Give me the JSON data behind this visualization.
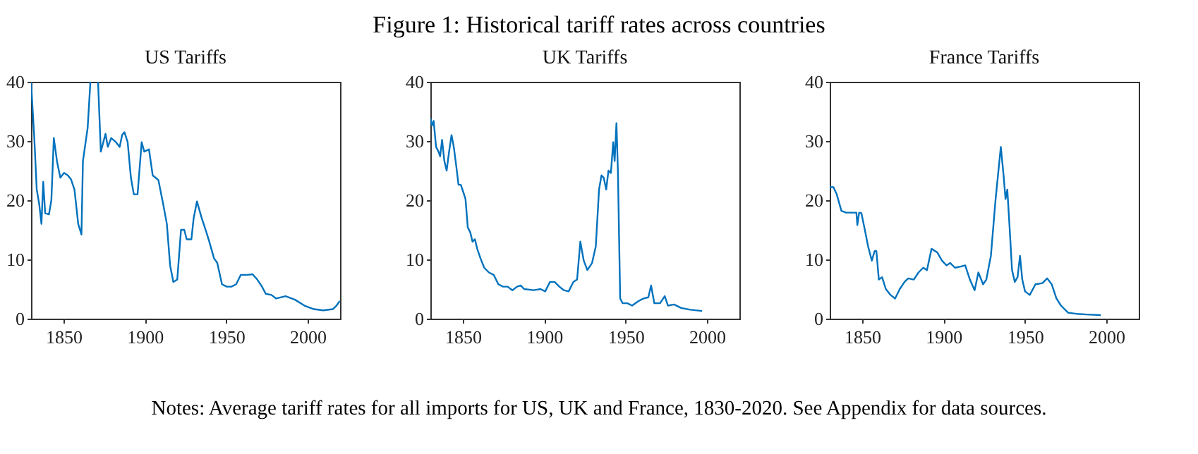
{
  "chart_data": [
    {
      "type": "line",
      "title": "US Tariffs",
      "color": "#0072bd",
      "xlim": [
        1830,
        2020
      ],
      "ylim": [
        0,
        40
      ],
      "xticks": [
        1850,
        1900,
        1950,
        2000
      ],
      "yticks": [
        0,
        10,
        20,
        30,
        40
      ],
      "grid": false,
      "x": [
        1830,
        1832,
        1833.5,
        1835,
        1836.4,
        1837.5,
        1838.7,
        1841,
        1842.5,
        1844,
        1846,
        1848,
        1850.3,
        1852.6,
        1854.6,
        1856.7,
        1859,
        1861,
        1861.9,
        1864.8,
        1866.5,
        1869,
        1871.2,
        1872.9,
        1875.8,
        1877.2,
        1879.3,
        1882.2,
        1884.5,
        1886,
        1887.4,
        1889.4,
        1891.4,
        1893.2,
        1895.5,
        1898,
        1899.6,
        1902.5,
        1904.8,
        1908.3,
        1911.2,
        1913.5,
        1915.5,
        1917.5,
        1919.9,
        1922.2,
        1924.2,
        1925.7,
        1928.6,
        1930,
        1932,
        1934.9,
        1937.8,
        1939.6,
        1942.5,
        1944.5,
        1947.4,
        1950.3,
        1953.2,
        1956.1,
        1959,
        1963.3,
        1966.2,
        1969.1,
        1972,
        1974.3,
        1977.8,
        1980.7,
        1986.5,
        1992.3,
        1998.1,
        2003.9,
        2009.7,
        2015.5,
        2017.8,
        2019.9
      ],
      "values": [
        40,
        30.5,
        21.8,
        19.4,
        16,
        23.1,
        17.8,
        17.6,
        20,
        30.5,
        26.5,
        23.8,
        24.6,
        24.2,
        23.5,
        21.8,
        16,
        14.2,
        26.6,
        32.2,
        40,
        null,
        40,
        28.2,
        31.2,
        29,
        30.5,
        29.8,
        29,
        31,
        31.5,
        29.8,
        23.8,
        21,
        21,
        29.8,
        28.2,
        28.6,
        24.2,
        23.4,
        19.4,
        16,
        9,
        6.2,
        6.6,
        15,
        15,
        13.4,
        13.4,
        17,
        19.8,
        17,
        14.6,
        13,
        10.2,
        9.4,
        5.8,
        5.4,
        5.4,
        5.8,
        7.4,
        7.4,
        7.5,
        6.6,
        5.4,
        4.2,
        4,
        3.4,
        3.8,
        3.2,
        2.2,
        1.6,
        1.4,
        1.6,
        2.2,
        3
      ]
    },
    {
      "type": "line",
      "title": "UK Tariffs",
      "color": "#0072bd",
      "xlim": [
        1830,
        2020
      ],
      "ylim": [
        0,
        40
      ],
      "xticks": [
        1850,
        1900,
        1950,
        2000
      ],
      "yticks": [
        0,
        10,
        20,
        30,
        40
      ],
      "grid": false,
      "x": [
        1830,
        1831,
        1832,
        1833.5,
        1835,
        1836,
        1837.2,
        1838.6,
        1840,
        1841.5,
        1843,
        1844.4,
        1845.9,
        1847.3,
        1848.7,
        1850.2,
        1851.6,
        1853,
        1854.5,
        1855.9,
        1857.4,
        1858.8,
        1860.8,
        1863.1,
        1866,
        1868.9,
        1871.8,
        1874.7,
        1877.5,
        1880.4,
        1883.3,
        1885.6,
        1887.6,
        1893.4,
        1897.7,
        1900.6,
        1903.5,
        1906.4,
        1909.3,
        1912.1,
        1915,
        1917.9,
        1920.2,
        1922.2,
        1924.3,
        1926.5,
        1929.4,
        1931.7,
        1933.7,
        1935.2,
        1936.6,
        1938.1,
        1939.5,
        1941,
        1942.4,
        1943.3,
        1944.4,
        1945.3,
        1946.7,
        1948.2,
        1951.1,
        1954,
        1958.2,
        1961.1,
        1964,
        1965.7,
        1967.7,
        1971.2,
        1974.1,
        1976.1,
        1979.8,
        1984.2,
        1989.9,
        1997.1
      ],
      "values": [
        33.8,
        32.6,
        33.4,
        29,
        28.2,
        27.4,
        30.2,
        26.6,
        25,
        28.2,
        31,
        29,
        25.8,
        22.6,
        22.6,
        21.4,
        20.2,
        15.4,
        14.6,
        13,
        13.4,
        11.8,
        10.2,
        8.6,
        7.8,
        7.4,
        5.8,
        5.4,
        5.4,
        4.8,
        5.4,
        5.6,
        5,
        4.8,
        5,
        4.6,
        6.2,
        6.2,
        5.4,
        4.8,
        4.6,
        6.2,
        6.6,
        13,
        9.8,
        8.2,
        9.4,
        12.2,
        21.8,
        24.2,
        23.8,
        21.8,
        25,
        24.6,
        29.8,
        26.6,
        33,
        25,
        3.4,
        2.6,
        2.6,
        2.2,
        3,
        3.4,
        3.6,
        5.6,
        2.6,
        2.6,
        3.8,
        2.2,
        2.4,
        1.8,
        1.5,
        1.3
      ]
    },
    {
      "type": "line",
      "title": "France Tariffs",
      "color": "#0072bd",
      "xlim": [
        1830,
        2020
      ],
      "ylim": [
        0,
        40
      ],
      "xticks": [
        1850,
        1900,
        1950,
        2000
      ],
      "yticks": [
        0,
        10,
        20,
        30,
        40
      ],
      "grid": false,
      "x": [
        1830,
        1832.3,
        1834.3,
        1837.2,
        1840.1,
        1844.4,
        1846.4,
        1847,
        1848.1,
        1849.5,
        1851.6,
        1853.6,
        1855.9,
        1857.6,
        1858.7,
        1860.2,
        1862.2,
        1864.5,
        1867.4,
        1870.2,
        1873.1,
        1876,
        1878.3,
        1881.7,
        1884.6,
        1887.5,
        1889.8,
        1892.6,
        1896.1,
        1899,
        1901.8,
        1904.1,
        1907,
        1910.5,
        1913.3,
        1916.2,
        1919.1,
        1921.4,
        1924.3,
        1926.3,
        1929.1,
        1932,
        1935.2,
        1936.9,
        1938.1,
        1939.2,
        1940.6,
        1942.1,
        1943.8,
        1945.5,
        1947,
        1948.4,
        1950.1,
        1953,
        1956.5,
        1960.8,
        1963.7,
        1966.5,
        1969.4,
        1972.2,
        1976.6,
        1982.3,
        1988.1,
        1996.7
      ],
      "values": [
        22.2,
        22.2,
        21,
        18.2,
        17.9,
        17.9,
        17.9,
        15.8,
        17.9,
        17.8,
        15,
        12.2,
        9.8,
        11.4,
        11.4,
        6.6,
        7,
        5,
        4,
        3.4,
        5,
        6.2,
        6.8,
        6.6,
        7.8,
        8.6,
        8.2,
        11.8,
        11.2,
        9.8,
        9,
        9.4,
        8.6,
        8.8,
        9,
        6.6,
        4.8,
        7.8,
        5.8,
        6.6,
        10.6,
        20.2,
        29,
        24.2,
        20.2,
        21.8,
        15.4,
        8.2,
        6.2,
        7,
        10.6,
        6.6,
        4.6,
        4,
        5.8,
        6,
        6.8,
        5.8,
        3.4,
        2.2,
        1,
        0.8,
        0.7,
        0.6
      ]
    },
    {
      "type": "other",
      "title": "Figure 1: Historical tariff rates across countries",
      "annotations": [
        "Notes: Average tariff rates for all imports for US, UK and France, 1830-2020. See Appendix for data sources."
      ]
    }
  ]
}
